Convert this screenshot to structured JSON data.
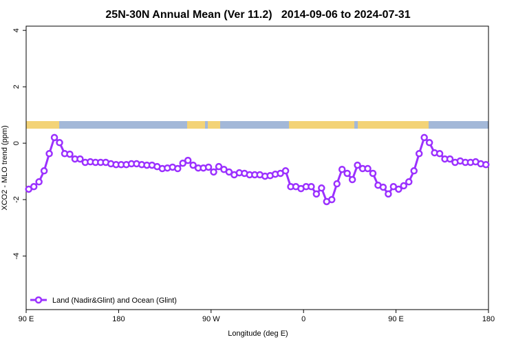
{
  "chart_data": {
    "type": "line",
    "title": "25N-30N Annual Mean (Ver 11.2)   2014-09-06 to 2024-07-31",
    "xlabel": "Longitude (deg E)",
    "ylabel": "XCO2 - MLO trend (ppm)",
    "x": [
      92.5,
      97.5,
      102.5,
      107.5,
      112.5,
      117.5,
      122.5,
      127.5,
      132.5,
      137.5,
      142.5,
      147.5,
      152.5,
      157.5,
      162.5,
      167.5,
      172.5,
      177.5,
      182.5,
      187.5,
      192.5,
      197.5,
      202.5,
      207.5,
      212.5,
      217.5,
      222.5,
      227.5,
      232.5,
      237.5,
      242.5,
      247.5,
      252.5,
      257.5,
      262.5,
      267.5,
      272.5,
      277.5,
      282.5,
      287.5,
      292.5,
      297.5,
      302.5,
      307.5,
      312.5,
      317.5,
      322.5,
      327.5,
      332.5,
      337.5,
      342.5,
      347.5,
      352.5,
      357.5,
      362.5,
      367.5,
      372.5,
      377.5,
      382.5,
      387.5,
      392.5,
      397.5,
      402.5,
      407.5,
      412.5,
      417.5,
      422.5,
      427.5,
      432.5,
      437.5,
      442.5,
      447.5,
      452.5,
      457.5,
      462.5,
      467.5,
      472.5,
      477.5,
      482.5,
      487.5,
      492.5,
      497.5,
      502.5,
      507.5,
      512.5,
      517.5,
      522.5,
      527.5,
      532.5,
      537.5
    ],
    "series": [
      {
        "name": "Land (Nadir&Glint) and Ocean (Glint)",
        "color": "#9b30ff",
        "values": [
          -1.63,
          -1.54,
          -1.37,
          -0.98,
          -0.37,
          0.2,
          0.02,
          -0.37,
          -0.39,
          -0.56,
          -0.56,
          -0.68,
          -0.66,
          -0.68,
          -0.68,
          -0.68,
          -0.73,
          -0.76,
          -0.76,
          -0.76,
          -0.73,
          -0.73,
          -0.76,
          -0.78,
          -0.78,
          -0.83,
          -0.9,
          -0.88,
          -0.85,
          -0.9,
          -0.71,
          -0.61,
          -0.78,
          -0.88,
          -0.88,
          -0.85,
          -1.02,
          -0.83,
          -0.93,
          -1.02,
          -1.12,
          -1.05,
          -1.07,
          -1.12,
          -1.12,
          -1.12,
          -1.17,
          -1.15,
          -1.1,
          -1.07,
          -0.98,
          -1.54,
          -1.54,
          -1.61,
          -1.54,
          -1.54,
          -1.8,
          -1.59,
          -2.07,
          -2.0,
          -1.44,
          -0.93,
          -1.07,
          -1.29,
          -0.78,
          -0.9,
          -0.9,
          -1.07,
          -1.49,
          -1.56,
          -1.8,
          -1.54,
          -1.63,
          -1.51,
          -1.37,
          -0.98,
          -0.37,
          0.2,
          0.02,
          -0.34,
          -0.37,
          -0.56,
          -0.56,
          -0.68,
          -0.63,
          -0.68,
          -0.68,
          -0.66,
          -0.73,
          -0.76
        ]
      }
    ],
    "xlim": [
      90,
      540
    ],
    "xticks": [
      {
        "value": 90,
        "label": "90 E"
      },
      180,
      {
        "value": 270,
        "label": "90 W"
      },
      {
        "value": 360,
        "label": "0"
      },
      {
        "value": 450,
        "label": "90 E"
      },
      {
        "value": 540,
        "label": "180"
      }
    ],
    "ylim": [
      -5.9,
      4.15
    ],
    "yticks": [
      -4,
      -2,
      0,
      2,
      4
    ],
    "legend": "lower left",
    "marker": "o"
  }
}
